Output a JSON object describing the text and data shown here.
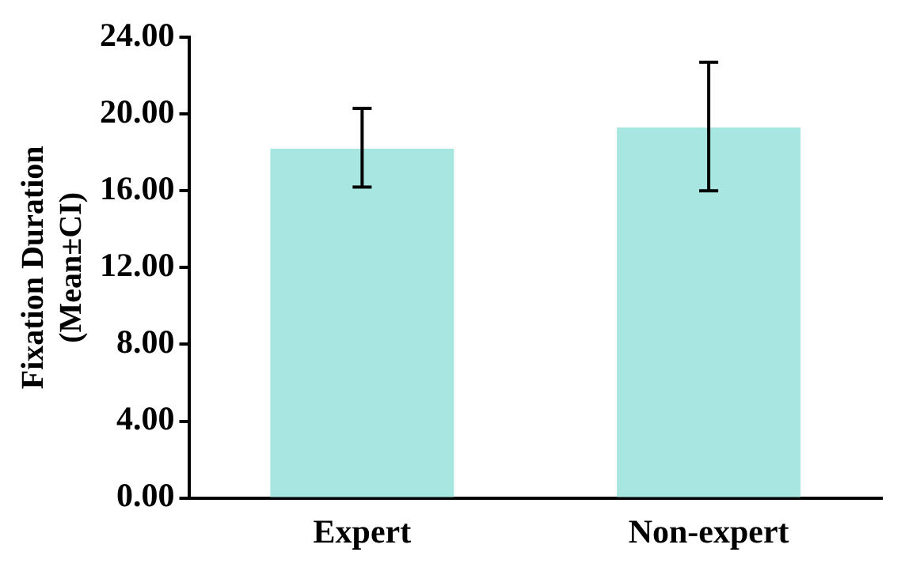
{
  "chart_data": {
    "type": "bar",
    "ylabel": "Fixation Duration\n(Mean±CI)",
    "categories": [
      "Expert",
      "Non-expert"
    ],
    "values": [
      18.2,
      19.3
    ],
    "color": "#a8e6e2",
    "errors": [
      [
        16.2,
        20.3
      ],
      [
        16.0,
        22.7
      ]
    ],
    "ylim": [
      0,
      24
    ],
    "yticks": [
      {
        "value": 0,
        "label": "0.00"
      },
      {
        "value": 4,
        "label": "4.00"
      },
      {
        "value": 8,
        "label": "8.00"
      },
      {
        "value": 12,
        "label": "12.00"
      },
      {
        "value": 16,
        "label": "16.00"
      },
      {
        "value": 20,
        "label": "20.00"
      },
      {
        "value": 24,
        "label": "24.00"
      }
    ],
    "grid": false,
    "legend": false
  }
}
